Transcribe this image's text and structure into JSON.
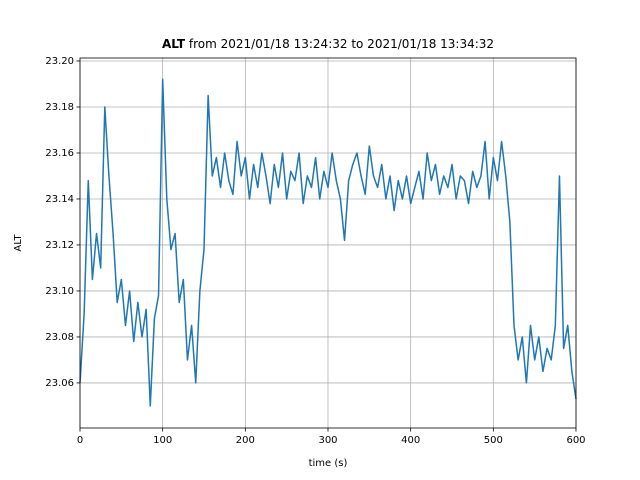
{
  "chart_data": {
    "type": "line",
    "title_parts": [
      "ALT",
      " from 2021/01/18 13:24:32 to 2021/01/18 13:34:32"
    ],
    "xlabel": "time (s)",
    "ylabel": "ALT",
    "color": "#1f77b4",
    "grid": true,
    "xlim": [
      0,
      600
    ],
    "xticks": [
      0,
      100,
      200,
      300,
      400,
      500,
      600
    ],
    "ylim": [
      23.0404,
      23.2013
    ],
    "yticks": [
      23.06,
      23.08,
      {
        "value": 23.1,
        "label": "23.10"
      },
      23.12,
      23.14,
      23.16,
      23.18,
      {
        "value": 23.2,
        "label": "23.20"
      }
    ],
    "x": [
      0,
      5,
      10,
      15,
      20,
      25,
      30,
      35,
      40,
      45,
      50,
      55,
      60,
      65,
      70,
      75,
      80,
      85,
      90,
      95,
      100,
      105,
      110,
      115,
      120,
      125,
      130,
      135,
      140,
      145,
      150,
      155,
      160,
      165,
      170,
      175,
      180,
      185,
      190,
      195,
      200,
      205,
      210,
      215,
      220,
      225,
      230,
      235,
      240,
      245,
      250,
      255,
      260,
      265,
      270,
      275,
      280,
      285,
      290,
      295,
      300,
      305,
      310,
      315,
      320,
      325,
      330,
      335,
      340,
      345,
      350,
      355,
      360,
      365,
      370,
      375,
      380,
      385,
      390,
      395,
      400,
      405,
      410,
      415,
      420,
      425,
      430,
      435,
      440,
      445,
      450,
      455,
      460,
      465,
      470,
      475,
      480,
      485,
      490,
      495,
      500,
      505,
      510,
      515,
      520,
      525,
      530,
      535,
      540,
      545,
      550,
      555,
      560,
      565,
      570,
      575,
      580,
      585,
      590,
      595,
      600
    ],
    "values": [
      23.06,
      23.09,
      23.148,
      23.105,
      23.125,
      23.11,
      23.18,
      23.15,
      23.125,
      23.095,
      23.105,
      23.085,
      23.1,
      23.078,
      23.095,
      23.08,
      23.092,
      23.05,
      23.088,
      23.098,
      23.192,
      23.14,
      23.118,
      23.125,
      23.095,
      23.105,
      23.07,
      23.085,
      23.06,
      23.1,
      23.118,
      23.185,
      23.15,
      23.158,
      23.145,
      23.16,
      23.148,
      23.142,
      23.165,
      23.15,
      23.158,
      23.14,
      23.155,
      23.145,
      23.16,
      23.15,
      23.138,
      23.155,
      23.145,
      23.16,
      23.14,
      23.152,
      23.148,
      23.16,
      23.138,
      23.15,
      23.145,
      23.158,
      23.14,
      23.152,
      23.145,
      23.16,
      23.148,
      23.14,
      23.122,
      23.148,
      23.155,
      23.16,
      23.15,
      23.142,
      23.163,
      23.15,
      23.145,
      23.155,
      23.14,
      23.15,
      23.135,
      23.148,
      23.14,
      23.15,
      23.138,
      23.145,
      23.152,
      23.14,
      23.16,
      23.148,
      23.155,
      23.142,
      23.15,
      23.145,
      23.155,
      23.14,
      23.15,
      23.148,
      23.138,
      23.152,
      23.145,
      23.15,
      23.165,
      23.14,
      23.158,
      23.148,
      23.165,
      23.15,
      23.13,
      23.085,
      23.07,
      23.08,
      23.06,
      23.085,
      23.07,
      23.08,
      23.065,
      23.075,
      23.07,
      23.085,
      23.15,
      23.075,
      23.085,
      23.065,
      23.053
    ]
  }
}
